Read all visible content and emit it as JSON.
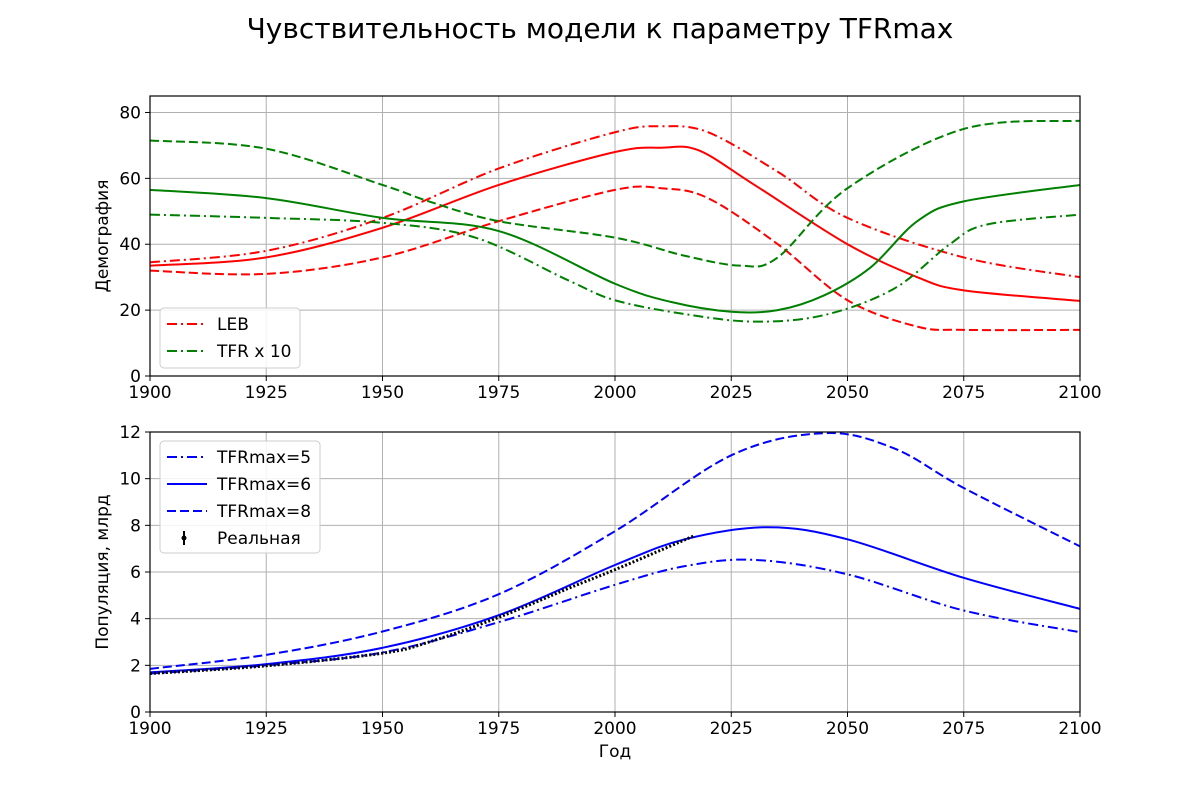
{
  "title": "Чувствительность модели к параметру TFRmax",
  "chart_data": [
    {
      "type": "line",
      "ylabel": "Демография",
      "xlabel": "",
      "xlim": [
        1900,
        2100
      ],
      "ylim": [
        0,
        85
      ],
      "xticks": [
        1900,
        1925,
        1950,
        1975,
        2000,
        2025,
        2050,
        2075,
        2100
      ],
      "yticks": [
        0,
        20,
        40,
        60,
        80
      ],
      "grid": true,
      "legend_position": "lower-left",
      "legend": [
        {
          "label": "LEB",
          "color": "#ff0000",
          "dash": "dashdot"
        },
        {
          "label": "TFR x 10",
          "color": "#008000",
          "dash": "dashdot"
        }
      ],
      "series": [
        {
          "color": "#ff0000",
          "dash": "dashdot",
          "points": [
            [
              1900,
              34.5
            ],
            [
              1925,
              38
            ],
            [
              1950,
              48
            ],
            [
              1975,
              63
            ],
            [
              2000,
              74
            ],
            [
              2010,
              75.8
            ],
            [
              2020,
              74
            ],
            [
              2035,
              62
            ],
            [
              2050,
              48
            ],
            [
              2075,
              36
            ],
            [
              2100,
              30
            ]
          ]
        },
        {
          "color": "#ff0000",
          "dash": "solid",
          "points": [
            [
              1900,
              33.5
            ],
            [
              1925,
              36
            ],
            [
              1950,
              45
            ],
            [
              1975,
              58
            ],
            [
              2000,
              68
            ],
            [
              2010,
              69.3
            ],
            [
              2018,
              68.5
            ],
            [
              2030,
              58
            ],
            [
              2050,
              40
            ],
            [
              2065,
              30
            ],
            [
              2075,
              26
            ],
            [
              2100,
              22.8
            ]
          ]
        },
        {
          "color": "#ff0000",
          "dash": "dashed",
          "points": [
            [
              1900,
              32
            ],
            [
              1925,
              31
            ],
            [
              1950,
              36
            ],
            [
              1975,
              47
            ],
            [
              2000,
              56.5
            ],
            [
              2010,
              57
            ],
            [
              2020,
              54
            ],
            [
              2035,
              40
            ],
            [
              2050,
              23
            ],
            [
              2065,
              15
            ],
            [
              2075,
              14
            ],
            [
              2100,
              14
            ]
          ]
        },
        {
          "color": "#008000",
          "dash": "dashed",
          "points": [
            [
              1900,
              71.5
            ],
            [
              1925,
              69
            ],
            [
              1950,
              58
            ],
            [
              1960,
              53
            ],
            [
              1975,
              47
            ],
            [
              2000,
              42
            ],
            [
              2015,
              36.5
            ],
            [
              2027,
              33.5
            ],
            [
              2035,
              36
            ],
            [
              2050,
              57
            ],
            [
              2075,
              75
            ],
            [
              2100,
              77.5
            ]
          ]
        },
        {
          "color": "#008000",
          "dash": "solid",
          "points": [
            [
              1900,
              56.5
            ],
            [
              1925,
              54
            ],
            [
              1950,
              48
            ],
            [
              1975,
              44
            ],
            [
              2000,
              28
            ],
            [
              2012,
              22.5
            ],
            [
              2025,
              19.5
            ],
            [
              2035,
              20
            ],
            [
              2045,
              24.5
            ],
            [
              2055,
              33
            ],
            [
              2065,
              47
            ],
            [
              2075,
              53
            ],
            [
              2100,
              58
            ]
          ]
        },
        {
          "color": "#008000",
          "dash": "dashdot",
          "points": [
            [
              1900,
              49
            ],
            [
              1925,
              48
            ],
            [
              1950,
              46.5
            ],
            [
              1970,
              42
            ],
            [
              1990,
              29
            ],
            [
              2000,
              23
            ],
            [
              2015,
              18.8
            ],
            [
              2030,
              16.5
            ],
            [
              2045,
              18.5
            ],
            [
              2060,
              26.5
            ],
            [
              2072,
              40
            ],
            [
              2080,
              46
            ],
            [
              2100,
              49
            ]
          ]
        }
      ]
    },
    {
      "type": "line",
      "ylabel": "Популяция, млрд",
      "xlabel": "Год",
      "xlim": [
        1900,
        2100
      ],
      "ylim": [
        0,
        12
      ],
      "xticks": [
        1900,
        1925,
        1950,
        1975,
        2000,
        2025,
        2050,
        2075,
        2100
      ],
      "yticks": [
        0,
        2,
        4,
        6,
        8,
        10,
        12
      ],
      "grid": true,
      "legend_position": "upper-left",
      "legend": [
        {
          "label": "TFRmax=5",
          "color": "#0000ff",
          "dash": "dashdot"
        },
        {
          "label": "TFRmax=6",
          "color": "#0000ff",
          "dash": "solid"
        },
        {
          "label": "TFRmax=8",
          "color": "#0000ff",
          "dash": "dashed"
        },
        {
          "label": "Реальная",
          "color": "#000000",
          "dash": "errorbar"
        }
      ],
      "series": [
        {
          "color": "#0000ff",
          "dash": "dashdot",
          "points": [
            [
              1900,
              1.65
            ],
            [
              1925,
              2.0
            ],
            [
              1950,
              2.55
            ],
            [
              1975,
              3.85
            ],
            [
              2000,
              5.45
            ],
            [
              2015,
              6.25
            ],
            [
              2030,
              6.52
            ],
            [
              2050,
              5.9
            ],
            [
              2075,
              4.35
            ],
            [
              2100,
              3.42
            ]
          ]
        },
        {
          "color": "#0000ff",
          "dash": "solid",
          "points": [
            [
              1900,
              1.7
            ],
            [
              1925,
              2.05
            ],
            [
              1950,
              2.75
            ],
            [
              1975,
              4.15
            ],
            [
              2000,
              6.3
            ],
            [
              2015,
              7.4
            ],
            [
              2033,
              7.92
            ],
            [
              2050,
              7.4
            ],
            [
              2075,
              5.75
            ],
            [
              2100,
              4.42
            ]
          ]
        },
        {
          "color": "#0000ff",
          "dash": "dashed",
          "points": [
            [
              1900,
              1.85
            ],
            [
              1925,
              2.45
            ],
            [
              1950,
              3.45
            ],
            [
              1975,
              5.05
            ],
            [
              2000,
              7.75
            ],
            [
              2025,
              11.0
            ],
            [
              2045,
              11.95
            ],
            [
              2060,
              11.3
            ],
            [
              2075,
              9.6
            ],
            [
              2100,
              7.1
            ]
          ]
        },
        {
          "color": "#000000",
          "dash": "dotted",
          "points": [
            [
              1900,
              1.65
            ],
            [
              1925,
              1.98
            ],
            [
              1950,
              2.52
            ],
            [
              1960,
              3.0
            ],
            [
              1975,
              4.06
            ],
            [
              1990,
              5.3
            ],
            [
              2000,
              6.1
            ],
            [
              2010,
              6.95
            ],
            [
              2017,
              7.55
            ]
          ]
        }
      ]
    }
  ]
}
